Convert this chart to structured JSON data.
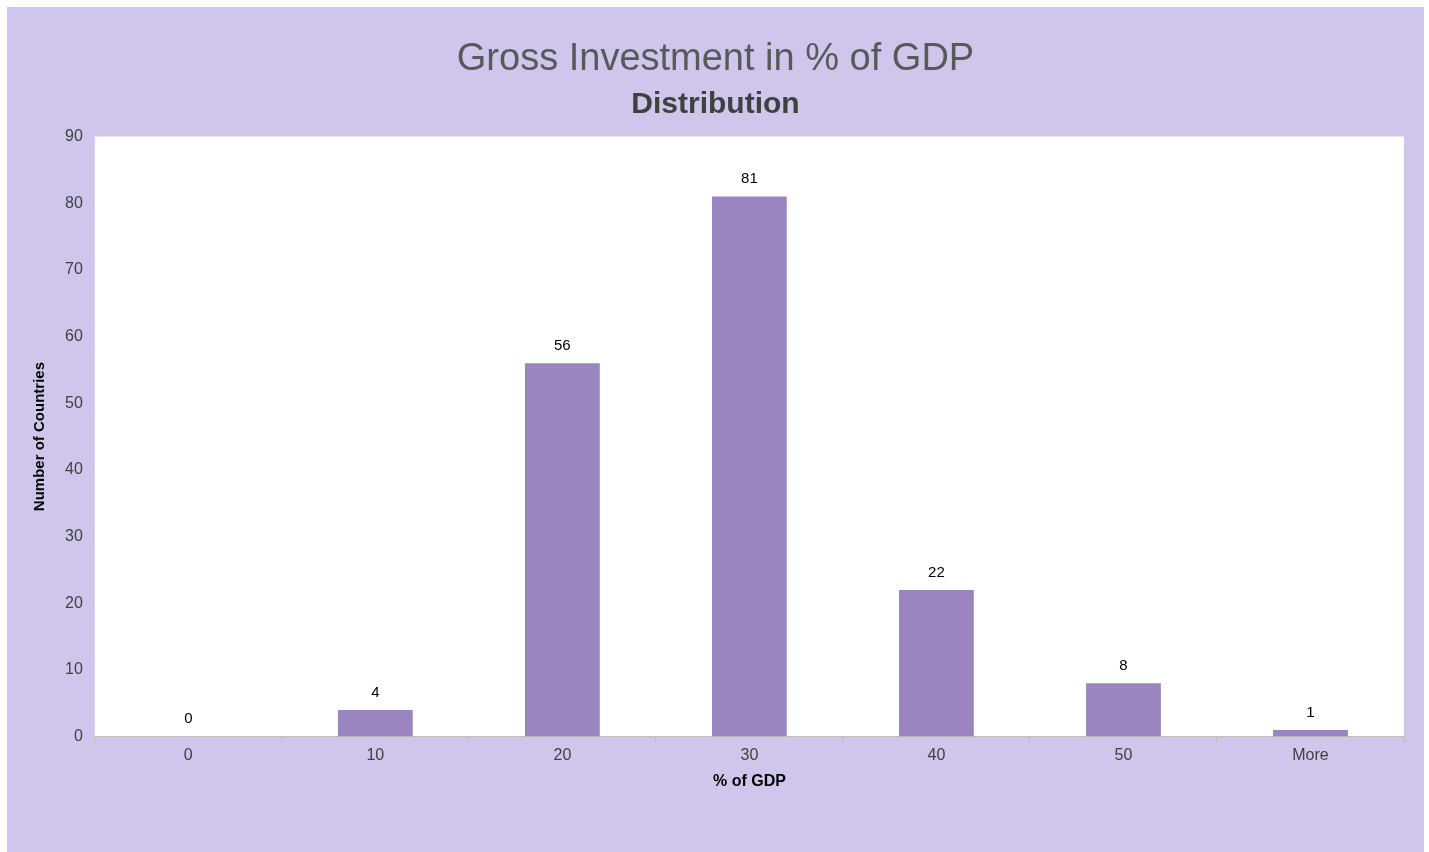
{
  "chart_data": {
    "type": "bar",
    "title": "Gross Investment in % of GDP",
    "subtitle": "Distribution",
    "xlabel": "% of GDP",
    "ylabel": "Number of Countries",
    "categories": [
      "0",
      "10",
      "20",
      "30",
      "40",
      "50",
      "More"
    ],
    "values": [
      0,
      4,
      56,
      81,
      22,
      8,
      1
    ],
    "color": "#9b85c0",
    "ylim": [
      0,
      90
    ],
    "yticks": [
      0,
      10,
      20,
      30,
      40,
      50,
      60,
      70,
      80,
      90
    ],
    "data_labels": true,
    "grid": false
  }
}
